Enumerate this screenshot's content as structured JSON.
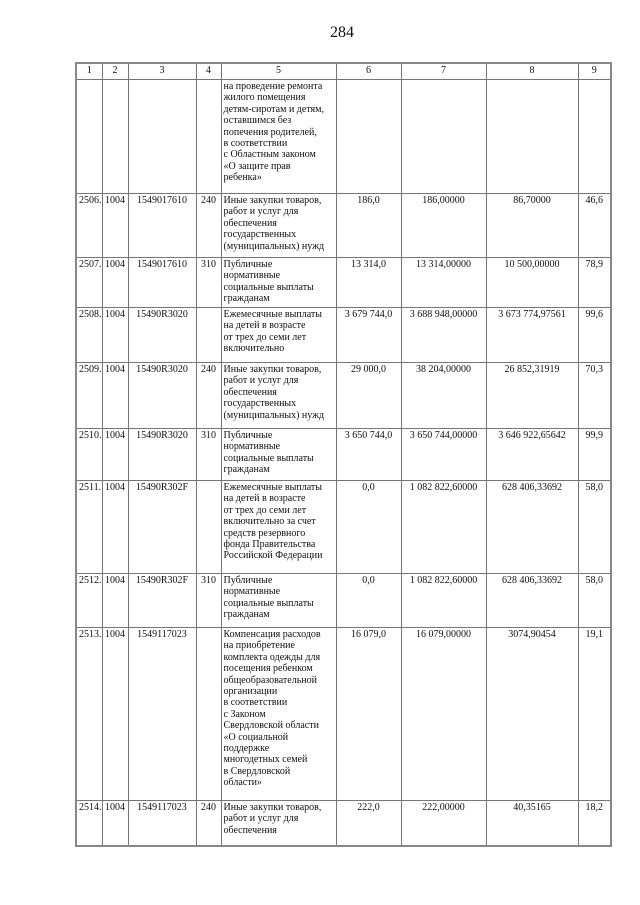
{
  "page_number": "284",
  "table": {
    "headers": [
      "1",
      "2",
      "3",
      "4",
      "5",
      "6",
      "7",
      "8",
      "9"
    ],
    "rows": [
      {
        "no": "",
        "section": "",
        "target": "",
        "type": "",
        "name": "на проведение ремонта\nжилого помещения\nдетям-сиротам и детям,\nоставшимся без\nпопечения родителей,\nв соответствии\nс Областным законом\n«О защите прав\nребенка»",
        "c6": "",
        "c7": "",
        "c8": "",
        "c9": ""
      },
      {
        "no": "2506.",
        "section": "1004",
        "target": "1549017610",
        "type": "240",
        "name": "Иные закупки товаров,\nработ и услуг для\nобеспечения\nгосударственных\n(муниципальных) нужд",
        "c6": "186,0",
        "c7": "186,00000",
        "c8": "86,70000",
        "c9": "46,6"
      },
      {
        "no": "2507.",
        "section": "1004",
        "target": "1549017610",
        "type": "310",
        "name": "Публичные\nнормативные\nсоциальные выплаты\nгражданам",
        "c6": "13 314,0",
        "c7": "13 314,00000",
        "c8": "10 500,00000",
        "c9": "78,9"
      },
      {
        "no": "2508.",
        "section": "1004",
        "target": "15490R3020",
        "type": "",
        "name": "Ежемесячные выплаты\nна детей в возрасте\nот трех до семи лет\nвключительно",
        "c6": "3 679 744,0",
        "c7": "3 688 948,00000",
        "c8": "3 673 774,97561",
        "c9": "99,6"
      },
      {
        "no": "2509.",
        "section": "1004",
        "target": "15490R3020",
        "type": "240",
        "name": "Иные закупки товаров,\nработ и услуг для\nобеспечения\nгосударственных\n(муниципальных) нужд",
        "c6": "29 000,0",
        "c7": "38 204,00000",
        "c8": "26 852,31919",
        "c9": "70,3"
      },
      {
        "no": "2510.",
        "section": "1004",
        "target": "15490R3020",
        "type": "310",
        "name": "Публичные\nнормативные\nсоциальные выплаты\nгражданам",
        "c6": "3 650 744,0",
        "c7": "3 650 744,00000",
        "c8": "3 646 922,65642",
        "c9": "99,9"
      },
      {
        "no": "2511.",
        "section": "1004",
        "target": "15490R302F",
        "type": "",
        "name": "Ежемесячные выплаты\nна детей в возрасте\nот трех до семи лет\nвключительно за счет\nсредств резервного\nфонда Правительства\nРоссийской Федерации",
        "c6": "0,0",
        "c7": "1 082 822,60000",
        "c8": "628 406,33692",
        "c9": "58,0"
      },
      {
        "no": "2512.",
        "section": "1004",
        "target": "15490R302F",
        "type": "310",
        "name": "Публичные\nнормативные\nсоциальные выплаты\nгражданам",
        "c6": "0,0",
        "c7": "1 082 822,60000",
        "c8": "628 406,33692",
        "c9": "58,0"
      },
      {
        "no": "2513.",
        "section": "1004",
        "target": "1549117023",
        "type": "",
        "name": "Компенсация расходов\nна приобретение\nкомплекта одежды для\nпосещения ребенком\nобщеобразовательной\nорганизации\nв соответствии\nс Законом\nСвердловской области\n«О социальной\nподдержке\nмногодетных семей\nв Свердловской\nобласти»",
        "c6": "16 079,0",
        "c7": "16 079,00000",
        "c8": "3074,90454",
        "c9": "19,1"
      },
      {
        "no": "2514.",
        "section": "1004",
        "target": "1549117023",
        "type": "240",
        "name": "Иные закупки товаров,\nработ и услуг для\nобеспечения",
        "c6": "222,0",
        "c7": "222,00000",
        "c8": "40,35165",
        "c9": "18,2"
      }
    ]
  }
}
